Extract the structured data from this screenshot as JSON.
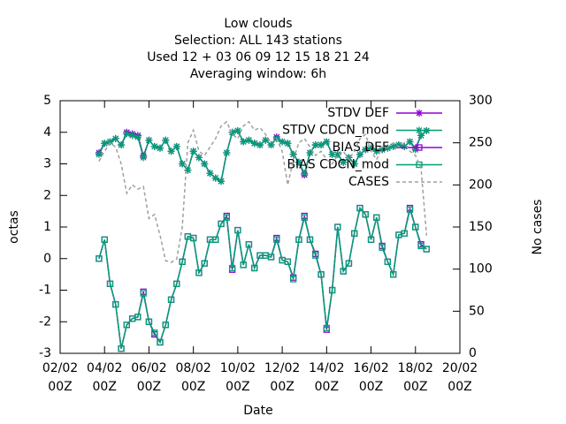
{
  "chart_data": {
    "type": "line",
    "title": [
      "Low clouds",
      "Selection: ALL    143 stations",
      "Used  12 + 03 06 09 12 15 18 21 24",
      "Averaging window:  6h"
    ],
    "xlabel": "Date",
    "ylabel": "octas",
    "y2label": "No cases",
    "x": [
      1.75,
      2,
      2.25,
      2.5,
      2.75,
      3,
      3.25,
      3.5,
      3.75,
      4,
      4.25,
      4.5,
      4.75,
      5,
      5.25,
      5.5,
      5.75,
      6,
      6.25,
      6.5,
      6.75,
      7,
      7.25,
      7.5,
      7.75,
      8,
      8.25,
      8.5,
      8.75,
      9,
      9.25,
      9.5,
      9.75,
      10,
      10.25,
      10.5,
      10.75,
      11,
      11.25,
      11.5,
      11.75,
      12,
      12.25,
      12.5,
      12.75,
      13,
      13.25,
      13.5,
      13.75,
      14,
      14.25,
      14.5,
      14.75,
      15,
      15.25,
      15.5,
      15.75,
      16,
      16.25,
      16.5
    ],
    "series": [
      {
        "name": "STDV DEF",
        "color": "#9400d3",
        "marker": "star",
        "values": [
          3.35,
          3.65,
          3.7,
          3.8,
          3.6,
          4.0,
          3.95,
          3.9,
          3.25,
          3.75,
          3.55,
          3.5,
          3.75,
          3.4,
          3.55,
          3.0,
          2.8,
          3.4,
          3.2,
          3.0,
          2.7,
          2.55,
          2.45,
          3.35,
          4.0,
          4.05,
          3.7,
          3.75,
          3.65,
          3.6,
          3.75,
          3.6,
          3.85,
          3.7,
          3.65,
          3.3,
          3.05,
          2.65,
          3.35,
          3.6,
          3.6,
          3.7,
          3.3,
          3.3,
          3.05,
          3.2,
          3.0,
          3.3,
          3.45,
          3.5,
          3.4,
          3.45,
          3.5,
          3.55,
          3.6,
          3.55,
          3.7,
          3.5,
          3.9,
          4.05
        ]
      },
      {
        "name": "STDV CDCN_mod",
        "color": "#009e73",
        "marker": "star",
        "values": [
          3.3,
          3.65,
          3.7,
          3.8,
          3.6,
          3.95,
          3.9,
          3.85,
          3.2,
          3.75,
          3.55,
          3.5,
          3.75,
          3.4,
          3.55,
          3.0,
          2.8,
          3.4,
          3.2,
          3.0,
          2.7,
          2.55,
          2.45,
          3.35,
          4.0,
          4.05,
          3.7,
          3.75,
          3.65,
          3.6,
          3.75,
          3.6,
          3.8,
          3.7,
          3.65,
          3.3,
          3.05,
          2.7,
          3.35,
          3.6,
          3.6,
          3.7,
          3.3,
          3.3,
          3.05,
          3.2,
          3.0,
          3.3,
          3.45,
          3.5,
          3.4,
          3.45,
          3.5,
          3.55,
          3.6,
          3.55,
          3.7,
          3.45,
          3.9,
          4.05
        ]
      },
      {
        "name": "BIAS DEF",
        "color": "#9400d3",
        "marker": "square",
        "values": [
          0.0,
          0.6,
          -0.8,
          -1.45,
          -2.85,
          -2.1,
          -1.9,
          -1.85,
          -1.05,
          -2.0,
          -2.4,
          -2.65,
          -2.1,
          -1.3,
          -0.8,
          -0.1,
          0.7,
          0.65,
          -0.45,
          -0.15,
          0.6,
          0.6,
          1.1,
          1.35,
          -0.35,
          0.9,
          -0.2,
          0.45,
          -0.3,
          0.1,
          0.1,
          0.05,
          0.65,
          -0.05,
          -0.1,
          -0.6,
          0.6,
          1.35,
          0.6,
          0.15,
          -0.5,
          -2.25,
          -1.0,
          1.0,
          -0.4,
          -0.15,
          0.8,
          1.6,
          1.4,
          0.6,
          1.3,
          0.4,
          -0.1,
          -0.5,
          0.75,
          0.8,
          1.6,
          1.0,
          0.45,
          0.3
        ]
      },
      {
        "name": "BIAS CDCN_mod",
        "color": "#009e73",
        "marker": "square",
        "values": [
          0.0,
          0.6,
          -0.8,
          -1.45,
          -2.85,
          -2.1,
          -1.9,
          -1.85,
          -1.1,
          -2.0,
          -2.35,
          -2.65,
          -2.1,
          -1.3,
          -0.8,
          -0.1,
          0.7,
          0.65,
          -0.45,
          -0.15,
          0.6,
          0.6,
          1.1,
          1.3,
          -0.3,
          0.9,
          -0.2,
          0.45,
          -0.3,
          0.1,
          0.1,
          0.05,
          0.6,
          -0.05,
          -0.1,
          -0.65,
          0.6,
          1.3,
          0.6,
          0.1,
          -0.5,
          -2.2,
          -1.0,
          1.0,
          -0.4,
          -0.15,
          0.8,
          1.6,
          1.4,
          0.6,
          1.3,
          0.35,
          -0.1,
          -0.5,
          0.75,
          0.8,
          1.55,
          1.0,
          0.4,
          0.3
        ]
      },
      {
        "name": "CASES",
        "color": "#a0a0a0",
        "dash": true,
        "axis": "y2",
        "values": [
          228,
          240,
          250,
          245,
          225,
          190,
          200,
          195,
          198,
          160,
          165,
          140,
          110,
          108,
          112,
          150,
          250,
          265,
          240,
          235,
          245,
          255,
          270,
          275,
          260,
          255,
          270,
          275,
          265,
          268,
          260,
          250,
          255,
          240,
          200,
          230,
          250,
          255,
          245,
          235,
          240,
          230,
          225,
          235,
          240,
          230,
          240,
          255,
          260,
          240,
          230,
          245,
          245,
          250,
          245,
          250,
          240,
          235,
          220,
          140
        ]
      }
    ],
    "xlim": [
      0,
      18
    ],
    "xticks": [
      {
        "value": 0,
        "label": "02/02",
        "hour": "00Z"
      },
      {
        "value": 2,
        "label": "04/02",
        "hour": "00Z"
      },
      {
        "value": 4,
        "label": "06/02",
        "hour": "00Z"
      },
      {
        "value": 6,
        "label": "08/02",
        "hour": "00Z"
      },
      {
        "value": 8,
        "label": "10/02",
        "hour": "00Z"
      },
      {
        "value": 10,
        "label": "12/02",
        "hour": "00Z"
      },
      {
        "value": 12,
        "label": "14/02",
        "hour": "00Z"
      },
      {
        "value": 14,
        "label": "16/02",
        "hour": "00Z"
      },
      {
        "value": 16,
        "label": "18/02",
        "hour": "00Z"
      },
      {
        "value": 18,
        "label": "20/02",
        "hour": "00Z"
      }
    ],
    "ylim": [
      -3,
      5
    ],
    "yticks": [
      -3,
      -2,
      -1,
      0,
      1,
      2,
      3,
      4,
      5
    ],
    "y2lim": [
      0,
      300
    ],
    "y2ticks": [
      0,
      50,
      100,
      150,
      200,
      250,
      300
    ],
    "grid": false,
    "legend": "top right"
  }
}
